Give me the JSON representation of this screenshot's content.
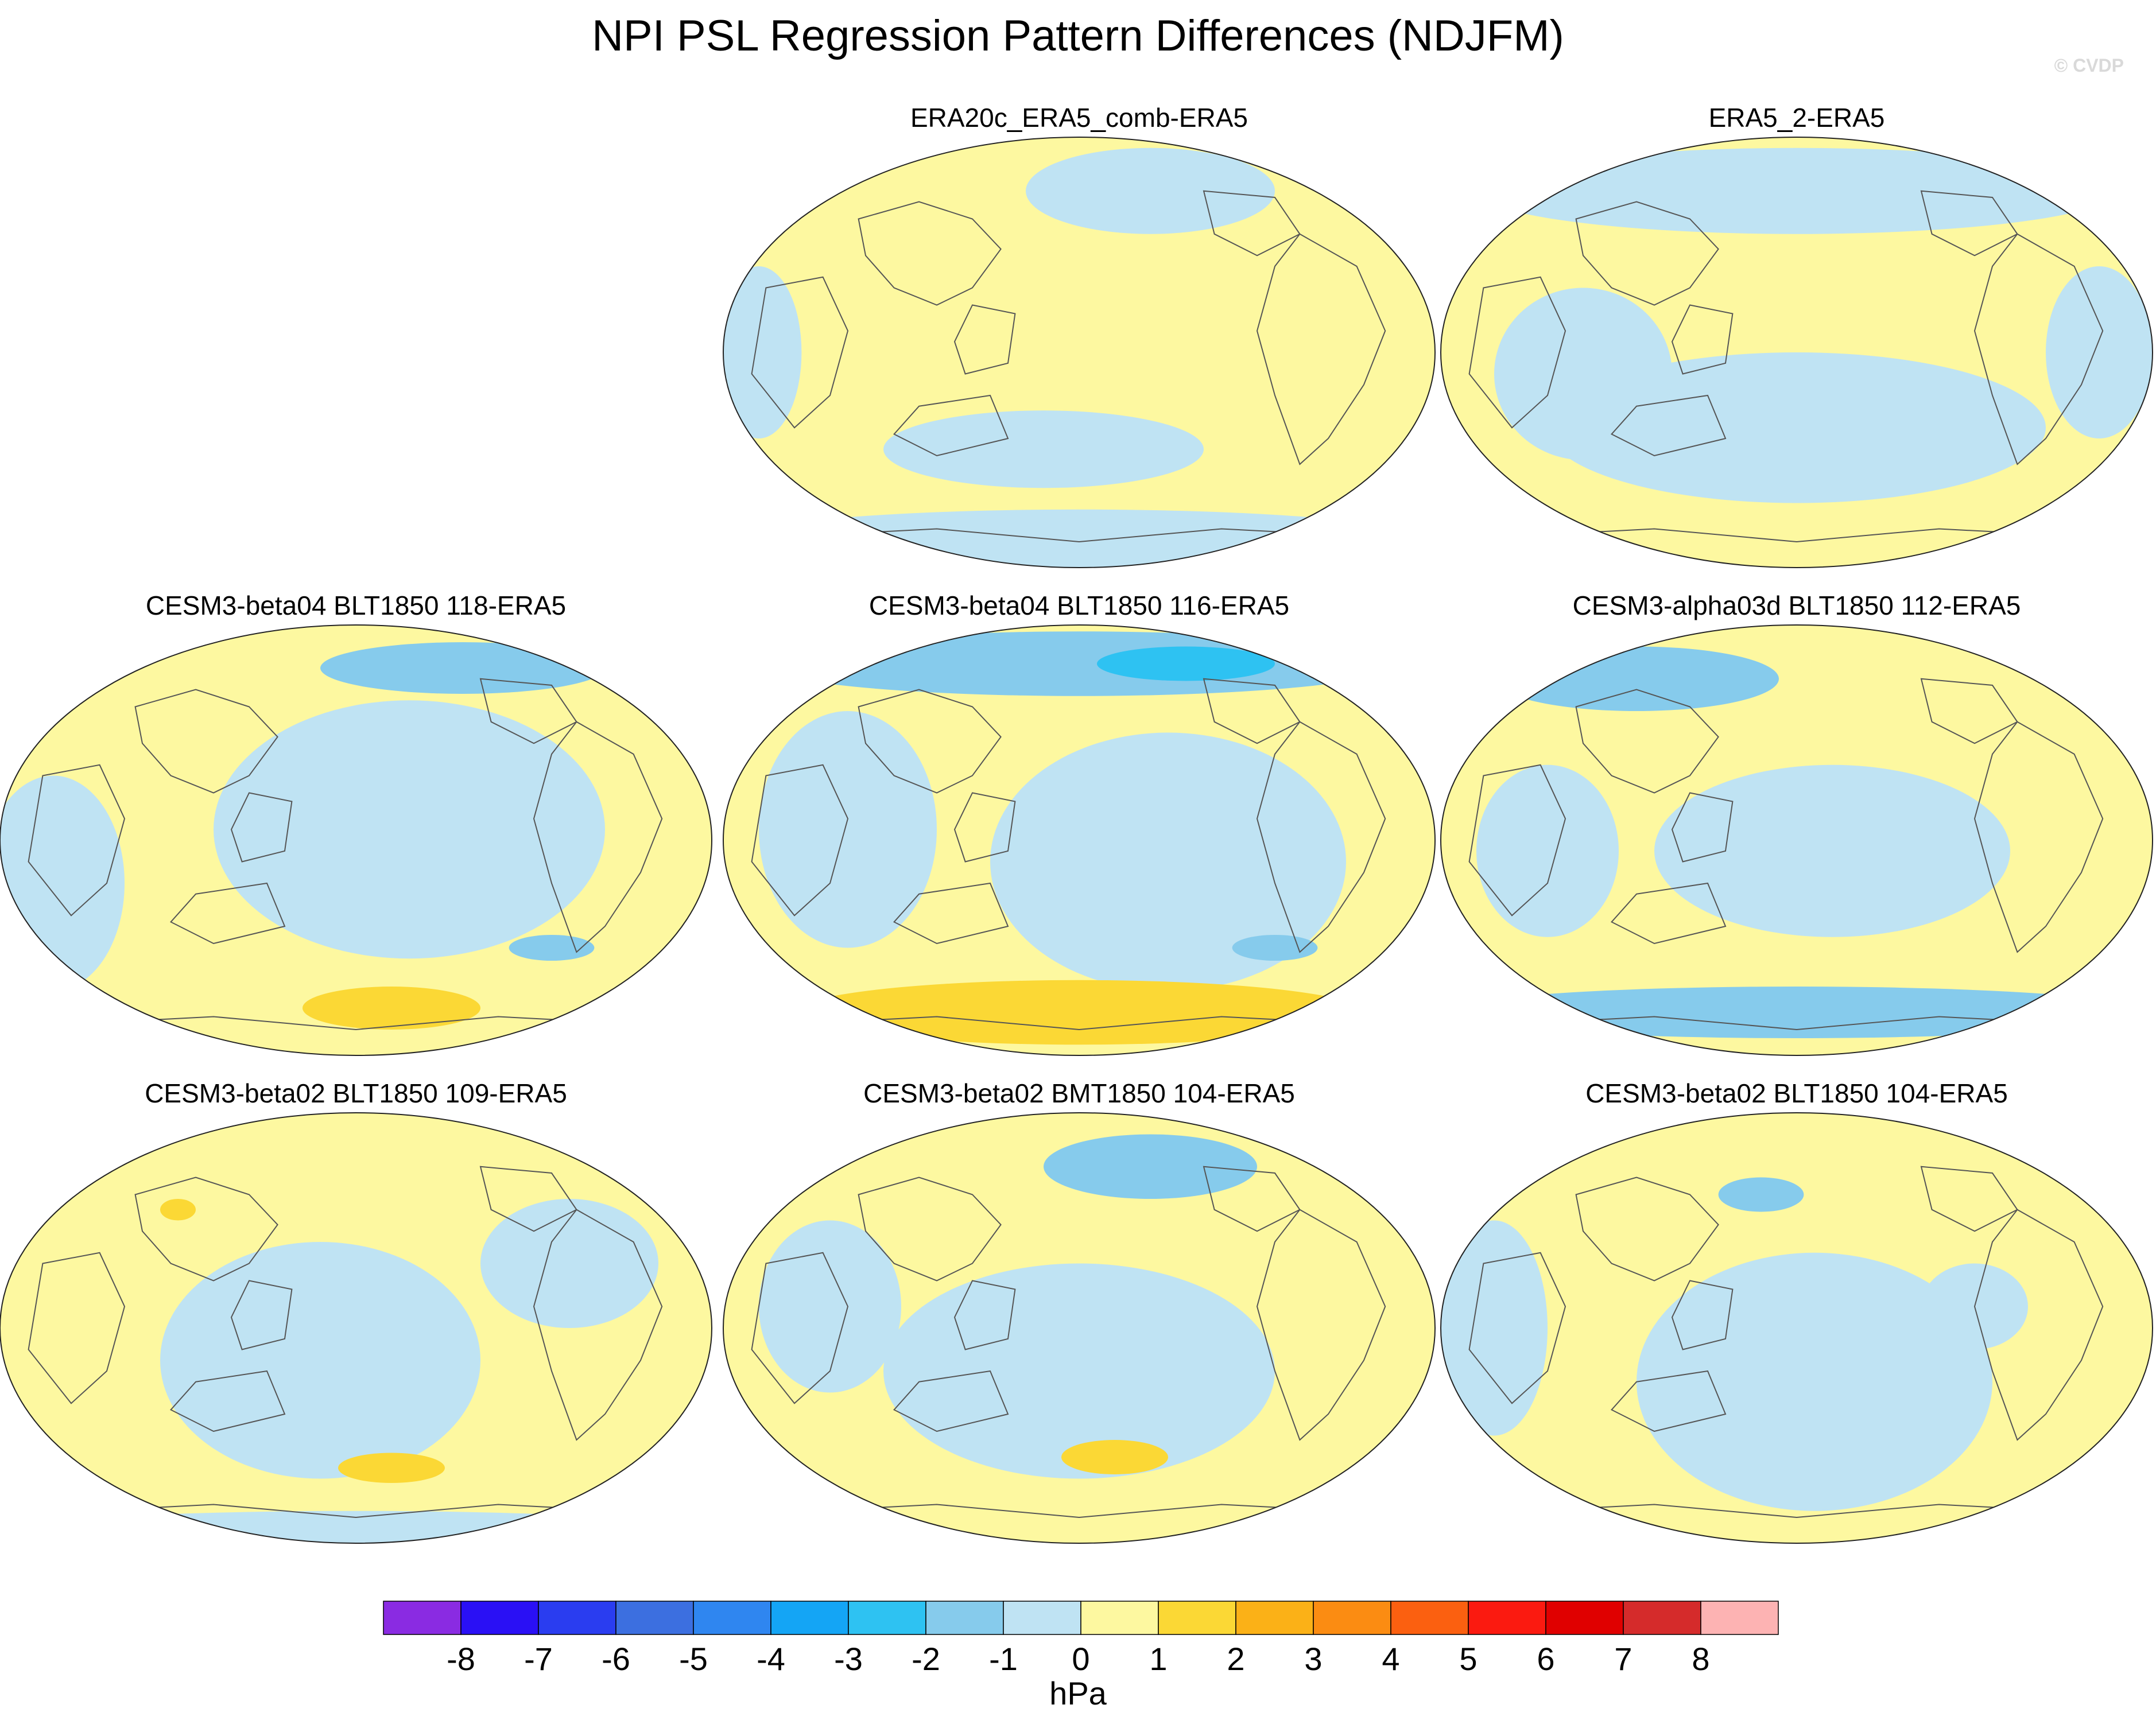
{
  "chart_data": {
    "type": "map_grid",
    "title": "NPI PSL Regression Pattern Differences (NDJFM)",
    "watermark": "© CVDP",
    "projection": "Robinson",
    "units": "hPa",
    "colorbar": {
      "label": "hPa",
      "tick_labels": [
        "-8",
        "-7",
        "-6",
        "-5",
        "-4",
        "-3",
        "-2",
        "-1",
        "0",
        "1",
        "2",
        "3",
        "4",
        "5",
        "6",
        "7",
        "8"
      ],
      "levels": [
        -8,
        -7,
        -6,
        -5,
        -4,
        -3,
        -2,
        -1,
        0,
        1,
        2,
        3,
        4,
        5,
        6,
        7,
        8
      ],
      "colors": [
        "#8a2be2",
        "#2a10f5",
        "#2a3df0",
        "#3c6fe0",
        "#2f86f0",
        "#14a5f5",
        "#2ec2f2",
        "#86cbec",
        "#bfe3f3",
        "#fdf8a0",
        "#fbd835",
        "#fbb117",
        "#fb8c12",
        "#fb6010",
        "#fb1a10",
        "#e00000",
        "#d52b2b",
        "#fdb3b3"
      ]
    },
    "panels": [
      {
        "name": "ERA20c_ERA5_comb-ERA5",
        "row": 1,
        "col": 2,
        "min_hPa": -1,
        "max_hPa": 1
      },
      {
        "name": "ERA5_2-ERA5",
        "row": 1,
        "col": 3,
        "min_hPa": -1,
        "max_hPa": 1
      },
      {
        "name": "CESM3-beta04 BLT1850 118-ERA5",
        "row": 2,
        "col": 1,
        "min_hPa": -2,
        "max_hPa": 2
      },
      {
        "name": "CESM3-beta04 BLT1850 116-ERA5",
        "row": 2,
        "col": 2,
        "min_hPa": -3,
        "max_hPa": 3
      },
      {
        "name": "CESM3-alpha03d BLT1850 112-ERA5",
        "row": 2,
        "col": 3,
        "min_hPa": -2,
        "max_hPa": 2
      },
      {
        "name": "CESM3-beta02 BLT1850 109-ERA5",
        "row": 3,
        "col": 1,
        "min_hPa": -1,
        "max_hPa": 2
      },
      {
        "name": "CESM3-beta02 BMT1850 104-ERA5",
        "row": 3,
        "col": 2,
        "min_hPa": -2,
        "max_hPa": 2
      },
      {
        "name": "CESM3-beta02 BLT1850 104-ERA5",
        "row": 3,
        "col": 3,
        "min_hPa": -2,
        "max_hPa": 1
      }
    ]
  }
}
